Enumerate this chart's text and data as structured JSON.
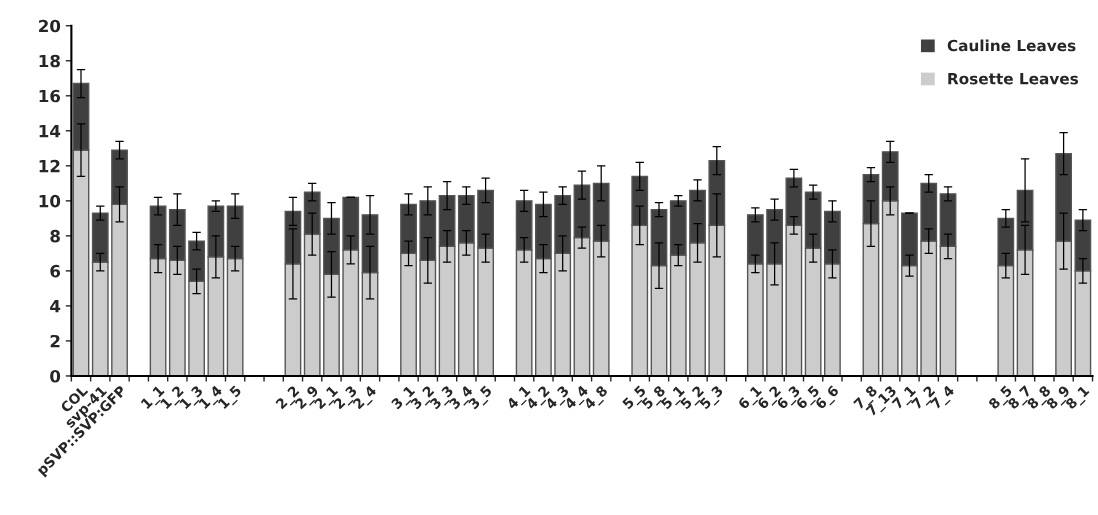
{
  "chart_data": {
    "type": "bar",
    "stacked": true,
    "categories": [
      "COL",
      "svp-41",
      "pSVP::SVP:GFP",
      null,
      "1_1",
      "1_2",
      "1_3",
      "1_4",
      "1_5",
      null,
      null,
      "2_2",
      "2_9",
      "2_1",
      "2_3",
      "2_4",
      null,
      "3_1",
      "3_2",
      "3_3",
      "3_4",
      "3_5",
      null,
      "4_1",
      "4_2",
      "4_3",
      "4_4",
      "4_8",
      null,
      "5_5",
      "5_8",
      "5_1",
      "5_2",
      "5_3",
      null,
      "6_1",
      "6_2",
      "6_3",
      "6_5",
      "6_6",
      null,
      "7_8",
      "7_13",
      "7_1",
      "7_2",
      "7_4",
      null,
      null,
      "8_5",
      "8_7",
      "8_8",
      "8_9",
      "8_1"
    ],
    "series": [
      {
        "name": "Rosette Leaves",
        "color": "#cccccc",
        "values": [
          12.9,
          6.5,
          9.8,
          null,
          6.7,
          6.6,
          5.4,
          6.8,
          6.7,
          null,
          null,
          6.4,
          8.1,
          5.8,
          7.2,
          5.9,
          null,
          7.0,
          6.6,
          7.4,
          7.6,
          7.3,
          null,
          7.2,
          6.7,
          7.0,
          7.9,
          7.7,
          null,
          8.6,
          6.3,
          6.9,
          7.6,
          8.6,
          null,
          6.4,
          6.4,
          8.6,
          7.3,
          6.4,
          null,
          8.7,
          10.0,
          6.3,
          7.7,
          7.4,
          null,
          null,
          6.3,
          7.2,
          null,
          7.7,
          6.0
        ],
        "errors": [
          1.5,
          0.5,
          1.0,
          null,
          0.8,
          0.8,
          0.7,
          1.2,
          0.7,
          null,
          null,
          2.0,
          1.2,
          1.3,
          0.8,
          1.5,
          null,
          0.7,
          1.3,
          0.9,
          0.7,
          0.8,
          null,
          0.7,
          0.8,
          1.0,
          0.6,
          0.9,
          null,
          1.1,
          1.3,
          0.6,
          1.1,
          1.8,
          null,
          0.5,
          1.2,
          0.5,
          0.8,
          0.8,
          null,
          1.3,
          0.8,
          0.6,
          0.7,
          0.7,
          null,
          null,
          0.7,
          1.4,
          null,
          1.6,
          0.7
        ]
      },
      {
        "name": "Cauline Leaves",
        "color": "#404040",
        "values": [
          3.8,
          2.8,
          3.1,
          null,
          3.0,
          2.9,
          2.3,
          2.9,
          3.0,
          null,
          null,
          3.0,
          2.4,
          3.2,
          3.0,
          3.3,
          null,
          2.8,
          3.4,
          2.9,
          2.7,
          3.3,
          null,
          2.8,
          3.1,
          3.3,
          3.0,
          3.3,
          null,
          2.8,
          3.2,
          3.1,
          3.0,
          3.7,
          null,
          2.8,
          3.1,
          2.7,
          3.2,
          3.0,
          null,
          2.8,
          2.8,
          3.0,
          3.3,
          3.0,
          null,
          null,
          2.7,
          3.4,
          null,
          5.0,
          2.9
        ],
        "errors": [
          0.8,
          0.4,
          0.5,
          null,
          0.5,
          0.9,
          0.5,
          0.3,
          0.7,
          null,
          null,
          0.8,
          0.5,
          0.9,
          0,
          1.1,
          null,
          0.6,
          0.8,
          0.8,
          0.5,
          0.7,
          null,
          0.6,
          0.7,
          0.5,
          0.8,
          1.0,
          null,
          0.8,
          0.4,
          0.3,
          0.6,
          0.8,
          null,
          0.4,
          0.6,
          0.5,
          0.4,
          0.6,
          null,
          0.4,
          0.6,
          0,
          0.5,
          0.4,
          null,
          null,
          0.5,
          1.8,
          null,
          1.2,
          0.6
        ]
      }
    ],
    "ylim": [
      0,
      20
    ],
    "yticks": [
      0,
      2,
      4,
      6,
      8,
      10,
      12,
      14,
      16,
      18,
      20
    ],
    "grid": false,
    "legend": "top right"
  }
}
